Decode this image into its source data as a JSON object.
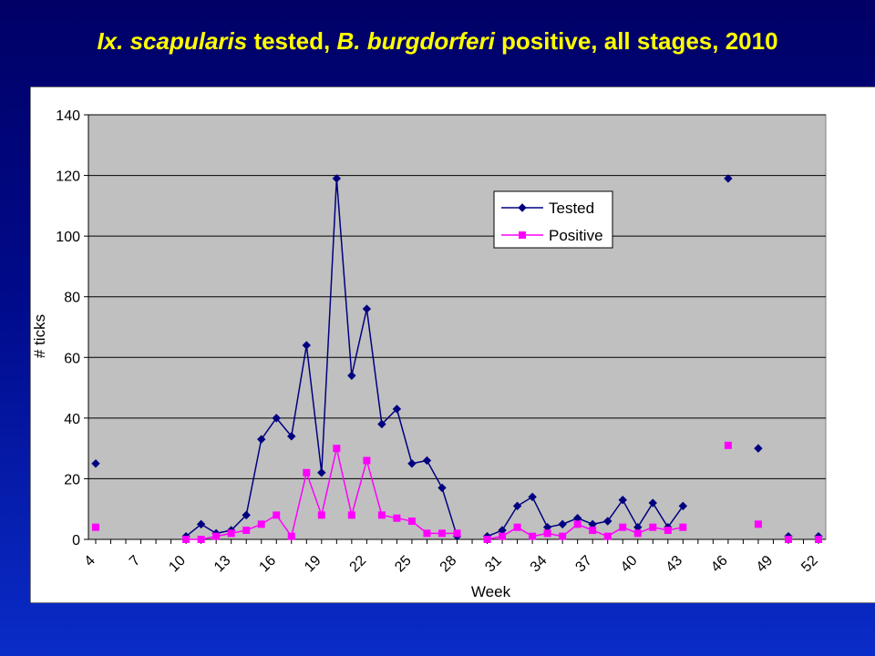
{
  "slide": {
    "title_part1": "Ix. scapularis",
    "title_part2": " tested, ",
    "title_part3": "B. burgdorferi",
    "title_part4": " positive, all stages, 2010"
  },
  "colors": {
    "background": "#000a8a",
    "title": "#ffff00",
    "plot_area": "#c0c0c0",
    "tested": "#000080",
    "positive": "#ff00ff"
  },
  "chart_data": {
    "type": "line",
    "title": "",
    "xlabel": "Week",
    "ylabel": "# ticks",
    "ylim": [
      0,
      140
    ],
    "yticks": [
      0,
      20,
      40,
      60,
      80,
      100,
      120,
      140
    ],
    "xlim": [
      4,
      52
    ],
    "xticks": [
      4,
      7,
      10,
      13,
      16,
      19,
      22,
      25,
      28,
      31,
      34,
      37,
      40,
      43,
      46,
      49,
      52
    ],
    "grid": "horizontal",
    "legend_position": "center-right",
    "series": [
      {
        "name": "Tested",
        "marker": "diamond",
        "color": "#000080",
        "points": [
          [
            4,
            25
          ],
          null,
          [
            10,
            1
          ],
          [
            11,
            5
          ],
          [
            12,
            2
          ],
          [
            13,
            3
          ],
          [
            14,
            8
          ],
          [
            15,
            33
          ],
          [
            16,
            40
          ],
          [
            17,
            34
          ],
          [
            18,
            64
          ],
          [
            19,
            22
          ],
          [
            20,
            119
          ],
          [
            21,
            54
          ],
          [
            22,
            76
          ],
          [
            23,
            38
          ],
          [
            24,
            43
          ],
          [
            25,
            25
          ],
          [
            26,
            26
          ],
          [
            27,
            17
          ],
          [
            28,
            1
          ],
          null,
          [
            30,
            1
          ],
          [
            31,
            3
          ],
          [
            32,
            11
          ],
          [
            33,
            14
          ],
          [
            34,
            4
          ],
          [
            35,
            5
          ],
          [
            36,
            7
          ],
          [
            37,
            5
          ],
          [
            38,
            6
          ],
          [
            39,
            13
          ],
          [
            40,
            4
          ],
          [
            41,
            12
          ],
          [
            42,
            4
          ],
          [
            43,
            11
          ],
          null,
          [
            46,
            119
          ],
          null,
          [
            48,
            30
          ],
          null,
          [
            50,
            1
          ],
          null,
          [
            52,
            1
          ]
        ]
      },
      {
        "name": "Positive",
        "marker": "square",
        "color": "#ff00ff",
        "points": [
          [
            4,
            4
          ],
          null,
          [
            10,
            0
          ],
          [
            11,
            0
          ],
          [
            12,
            1
          ],
          [
            13,
            2
          ],
          [
            14,
            3
          ],
          [
            15,
            5
          ],
          [
            16,
            8
          ],
          [
            17,
            1
          ],
          [
            18,
            22
          ],
          [
            19,
            8
          ],
          [
            20,
            30
          ],
          [
            21,
            8
          ],
          [
            22,
            26
          ],
          [
            23,
            8
          ],
          [
            24,
            7
          ],
          [
            25,
            6
          ],
          [
            26,
            2
          ],
          [
            27,
            2
          ],
          [
            28,
            2
          ],
          null,
          [
            30,
            0
          ],
          [
            31,
            1
          ],
          [
            32,
            4
          ],
          [
            33,
            1
          ],
          [
            34,
            2
          ],
          [
            35,
            1
          ],
          [
            36,
            5
          ],
          [
            37,
            3
          ],
          [
            38,
            1
          ],
          [
            39,
            4
          ],
          [
            40,
            2
          ],
          [
            41,
            4
          ],
          [
            42,
            3
          ],
          [
            43,
            4
          ],
          null,
          [
            46,
            31
          ],
          null,
          [
            48,
            5
          ],
          null,
          [
            50,
            0
          ],
          null,
          [
            52,
            0
          ]
        ]
      }
    ]
  }
}
